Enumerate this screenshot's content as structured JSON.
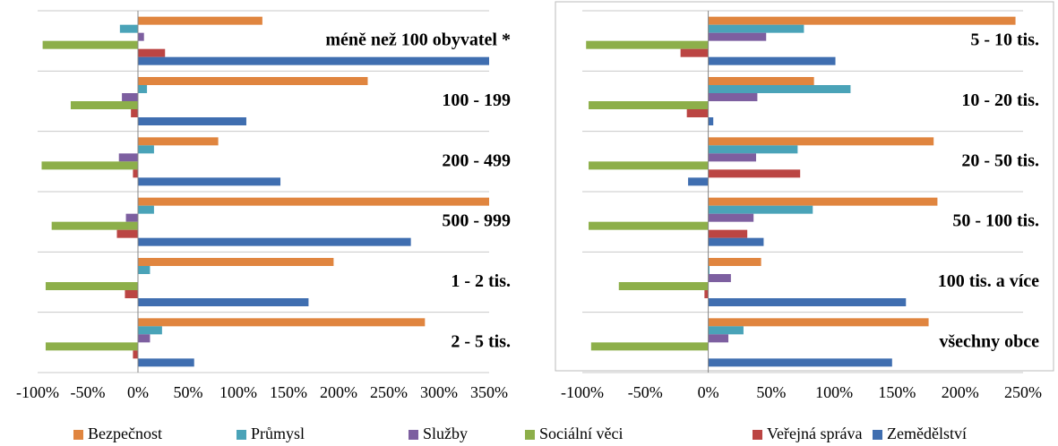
{
  "chart_data": [
    {
      "type": "hbar",
      "categories": [
        "méně než 100 obyvatel *",
        "100 - 199",
        "200 - 499",
        "500 - 999",
        "1 - 2 tis.",
        "2 - 5 tis."
      ],
      "series": [
        {
          "name": "Bezpečnost",
          "color": "#e0853f",
          "values": [
            124,
            229,
            80,
            350,
            195,
            286
          ]
        },
        {
          "name": "Průmysl",
          "color": "#4aa3b8",
          "values": [
            -18,
            9,
            16,
            16,
            12,
            24
          ]
        },
        {
          "name": "Služby",
          "color": "#7d5fa0",
          "values": [
            6,
            -16,
            -19,
            -12,
            0,
            12
          ]
        },
        {
          "name": "Sociální věci",
          "color": "#8daf4a",
          "values": [
            -95,
            -67,
            -96,
            -86,
            -92,
            -92
          ]
        },
        {
          "name": "Veřejná správa",
          "color": "#bb4543",
          "values": [
            27,
            -7,
            -5,
            -21,
            -13,
            -5
          ]
        },
        {
          "name": "Zemědělství",
          "color": "#3f6eb0",
          "values": [
            350,
            108,
            142,
            272,
            170,
            56
          ]
        }
      ],
      "xlim": [
        -100,
        350
      ],
      "xticks": [
        {
          "value": -100,
          "label": "-100%"
        },
        {
          "value": -50,
          "label": "-50%"
        },
        {
          "value": 0,
          "label": "0%"
        },
        {
          "value": 50,
          "label": "50%"
        },
        {
          "value": 100,
          "label": "100%"
        },
        {
          "value": 150,
          "label": "150%"
        },
        {
          "value": 200,
          "label": "200%"
        },
        {
          "value": 250,
          "label": "250%"
        },
        {
          "value": 300,
          "label": "300%"
        },
        {
          "value": 350,
          "label": "350%"
        }
      ]
    },
    {
      "type": "hbar",
      "categories": [
        "5 - 10 tis.",
        "10 - 20 tis.",
        "20 - 50 tis.",
        "50 - 100 tis.",
        "100 tis. a více",
        "všechny obce"
      ],
      "series": [
        {
          "color": "#e0853f",
          "values": [
            244,
            84,
            179,
            182,
            42,
            175
          ]
        },
        {
          "color": "#4aa3b8",
          "values": [
            76,
            113,
            71,
            83,
            1,
            28
          ]
        },
        {
          "color": "#7d5fa0",
          "values": [
            46,
            39,
            38,
            36,
            18,
            16
          ]
        },
        {
          "color": "#8daf4a",
          "values": [
            -97,
            -95,
            -95,
            -95,
            -71,
            -93
          ]
        },
        {
          "color": "#bb4543",
          "values": [
            -22,
            -17,
            73,
            31,
            -3,
            0
          ]
        },
        {
          "color": "#3f6eb0",
          "values": [
            101,
            4,
            -16,
            44,
            157,
            146
          ]
        }
      ],
      "xlim": [
        -100,
        250
      ],
      "xticks": [
        {
          "value": -100,
          "label": "-100%"
        },
        {
          "value": -50,
          "label": "-50%"
        },
        {
          "value": 0,
          "label": "0%"
        },
        {
          "value": 50,
          "label": "50%"
        },
        {
          "value": 100,
          "label": "100%"
        },
        {
          "value": 150,
          "label": "150%"
        },
        {
          "value": 200,
          "label": "200%"
        },
        {
          "value": 250,
          "label": "250%"
        }
      ]
    }
  ]
}
